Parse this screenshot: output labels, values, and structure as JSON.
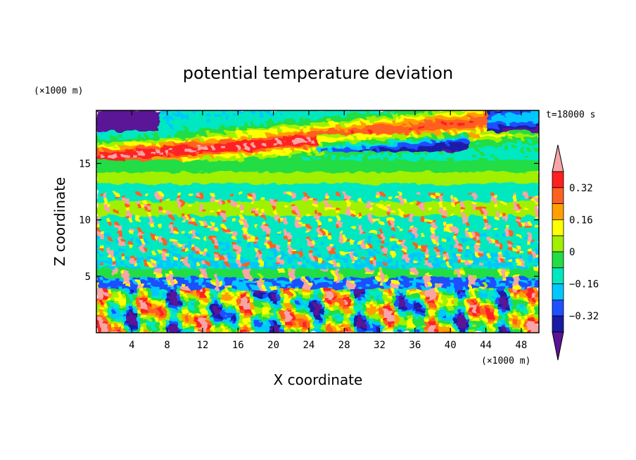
{
  "chart_data": {
    "type": "heatmap",
    "title": "potential temperature deviation",
    "xlabel": "X coordinate",
    "ylabel": "Z coordinate",
    "x_unit": "(×1000 m)",
    "y_unit": "(×1000 m)",
    "time_label": "t=18000 s",
    "xlim": [
      0,
      50
    ],
    "ylim": [
      0,
      19.7
    ],
    "x_ticks": [
      4,
      8,
      12,
      16,
      20,
      24,
      28,
      32,
      36,
      40,
      44,
      48
    ],
    "y_ticks": [
      5,
      10,
      15
    ],
    "colorbar": {
      "levels": [
        -0.4,
        -0.32,
        -0.24,
        -0.16,
        -0.08,
        0,
        0.08,
        0.16,
        0.24,
        0.32,
        0.4
      ],
      "tick_values": [
        0.32,
        0.16,
        0,
        -0.16,
        -0.32
      ],
      "tick_labels": [
        "0.32",
        "0.16",
        "0",
        "−0.16",
        "−0.32"
      ],
      "colors": [
        "#5a1496",
        "#1a1aa8",
        "#1e50ff",
        "#00c8ff",
        "#00e8c0",
        "#22dd44",
        "#a0f000",
        "#ffff00",
        "#ffa000",
        "#ff6020",
        "#ff2020",
        "#f7a5a5"
      ]
    },
    "layers": [
      {
        "z": [
          19.7,
          17.5
        ],
        "value": "mixed",
        "desc": "upper: purple corners, warm band"
      },
      {
        "z": [
          17.5,
          15.3
        ],
        "value": 0.4
      },
      {
        "z": [
          15.3,
          14.2
        ],
        "value": -0.05
      },
      {
        "z": [
          14.2,
          13.1
        ],
        "value": 0.05
      },
      {
        "z": [
          13.1,
          11.6
        ],
        "value": -0.12
      },
      {
        "z": [
          11.6,
          10.3
        ],
        "value": 0.05
      },
      {
        "z": [
          10.3,
          8.8
        ],
        "value": -0.12
      },
      {
        "z": [
          8.8,
          7.0
        ],
        "value": -0.14
      },
      {
        "z": [
          7.0,
          5.8
        ],
        "value": -0.16
      },
      {
        "z": [
          5.8,
          4.8
        ],
        "value": -0.05
      },
      {
        "z": [
          4.8,
          3.8
        ],
        "value": -0.25
      },
      {
        "z": [
          3.8,
          0.0
        ],
        "value": "turbulent",
        "desc": "alternating -0.4 to 0.4"
      }
    ]
  }
}
